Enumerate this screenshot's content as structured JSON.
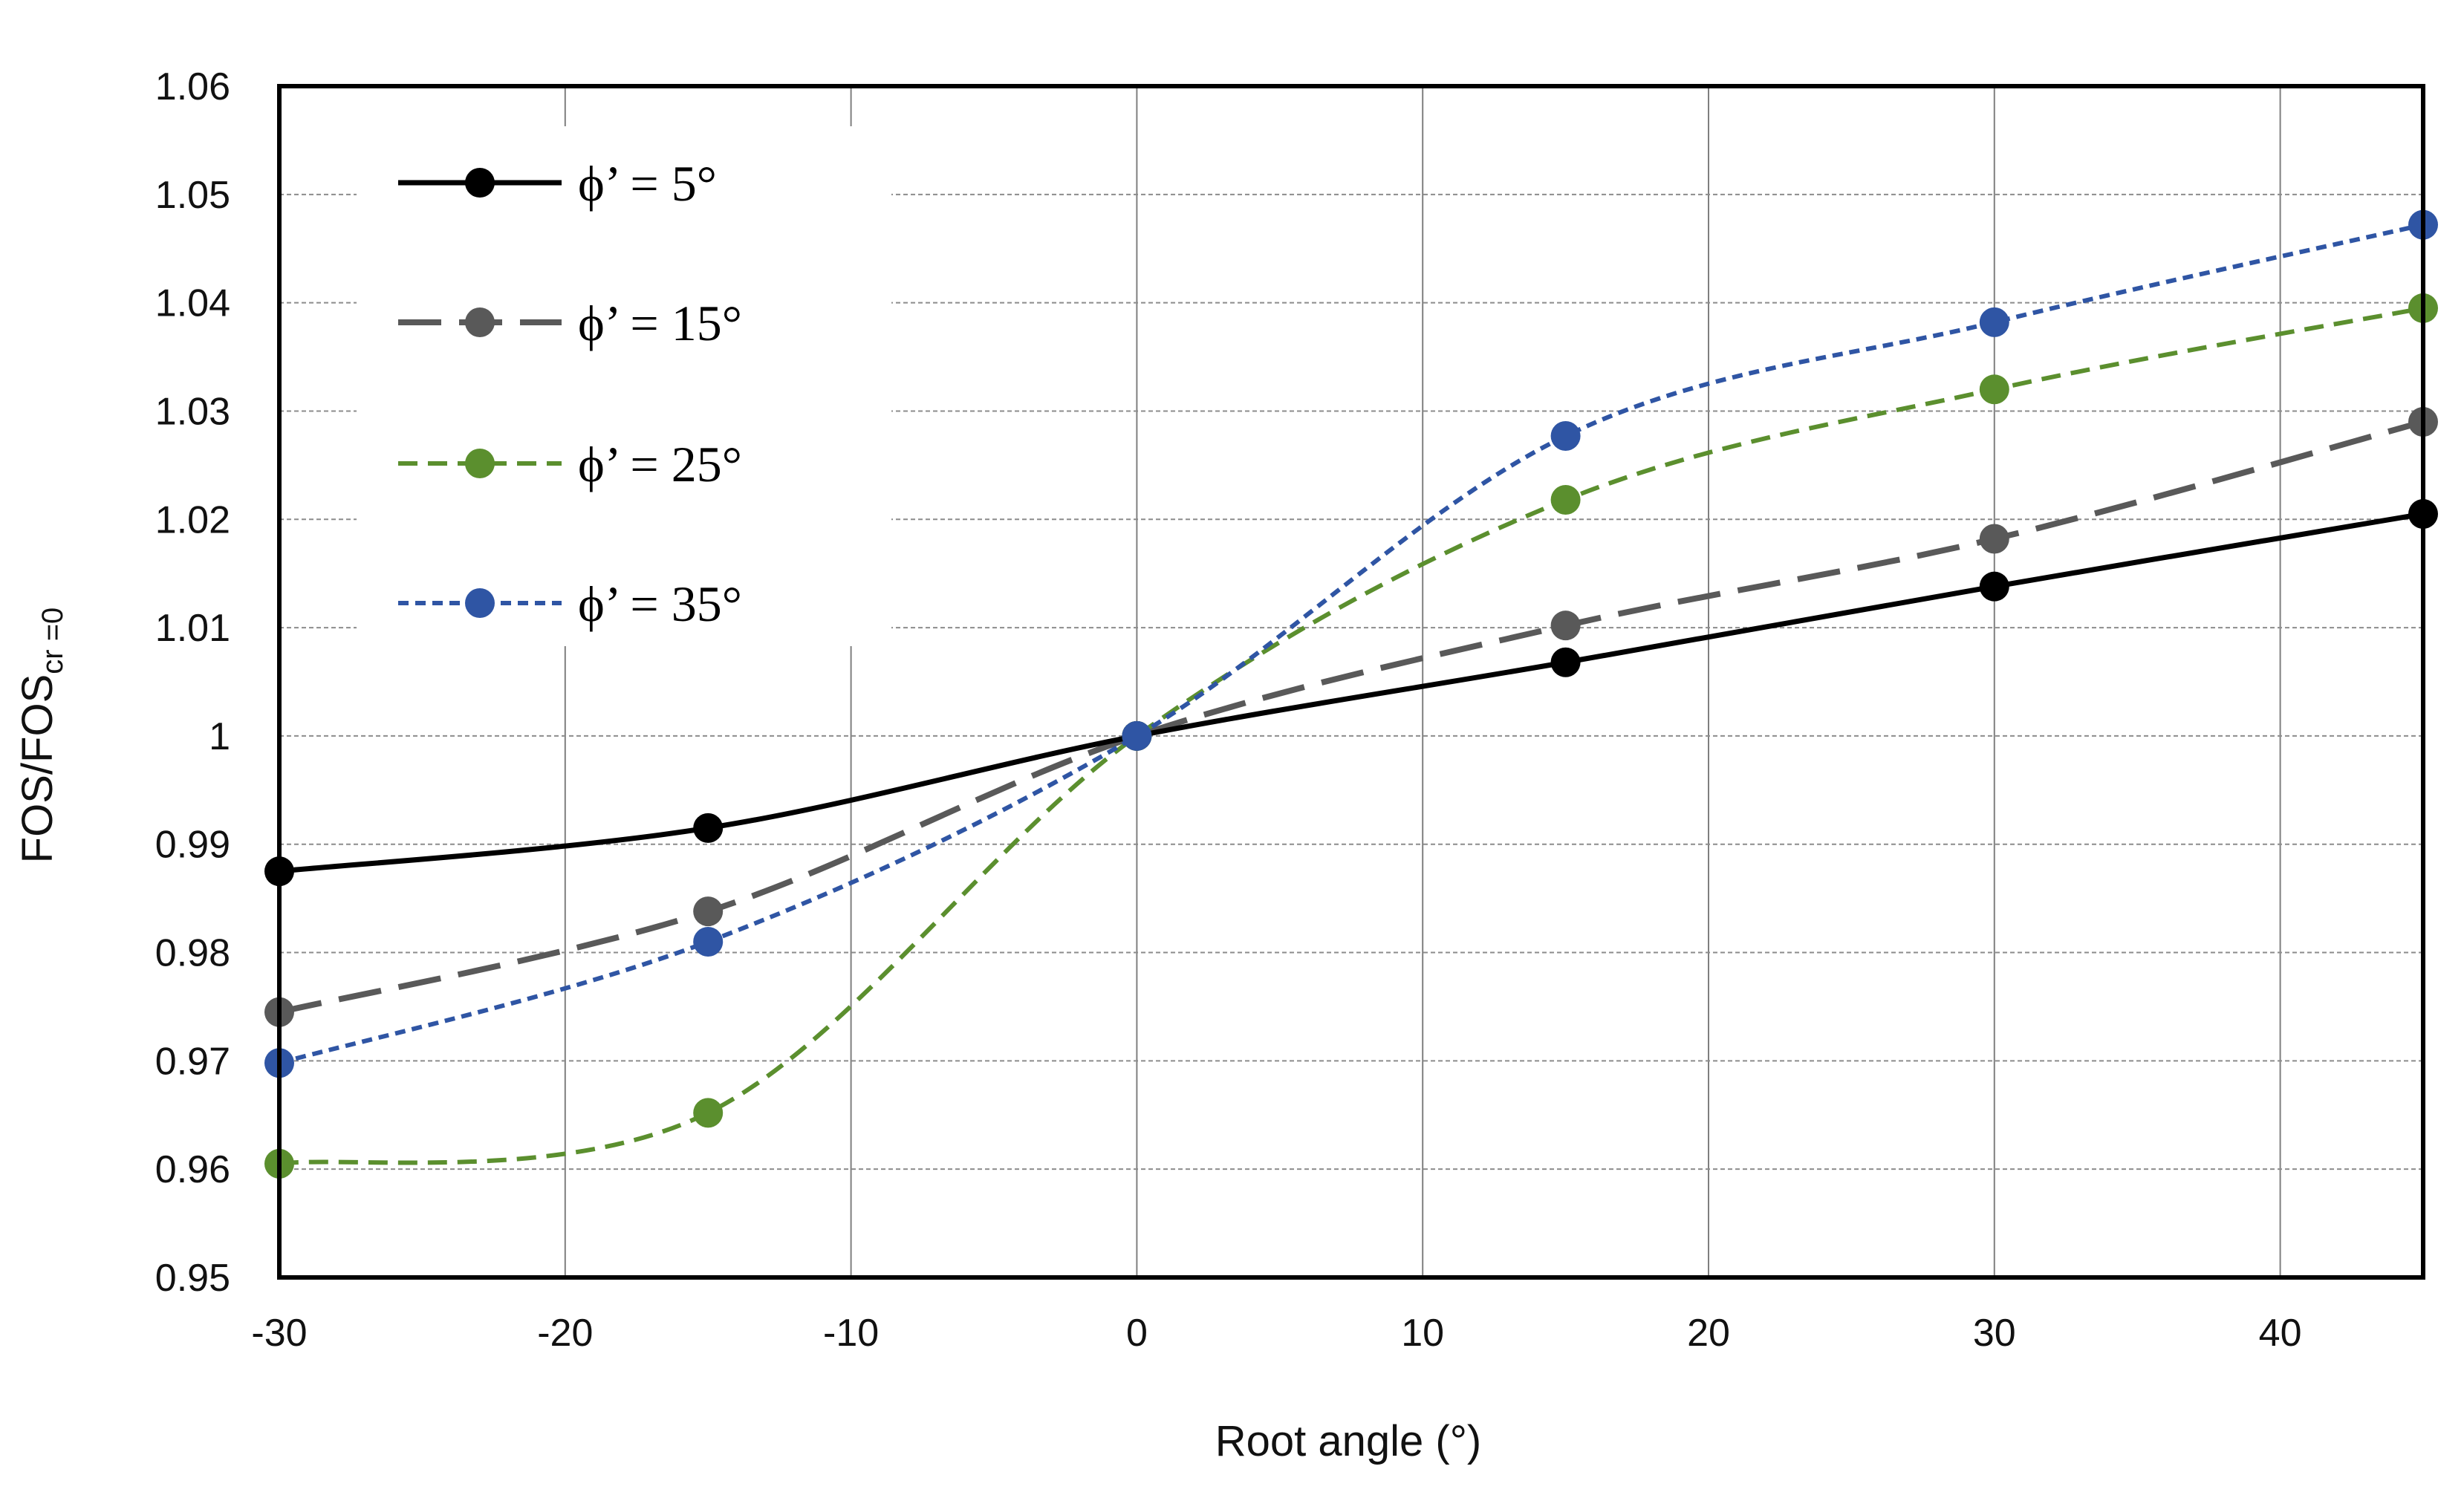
{
  "chart_data": {
    "type": "line",
    "title": "",
    "xlabel": "Root angle (°)",
    "ylabel_main": "FOS/FOS",
    "ylabel_sub": "cr =0",
    "xlim": [
      -30,
      45
    ],
    "ylim": [
      0.95,
      1.06
    ],
    "x_ticks": [
      -30,
      -20,
      -10,
      0,
      10,
      20,
      30,
      40
    ],
    "x_tick_labels": [
      "-30",
      "-20",
      "-10",
      "0",
      "10",
      "20",
      "30",
      "40"
    ],
    "y_ticks": [
      0.95,
      0.96,
      0.97,
      0.98,
      0.99,
      1.0,
      1.01,
      1.02,
      1.03,
      1.04,
      1.05,
      1.06
    ],
    "y_tick_labels": [
      "0.95",
      "0.96",
      "0.97",
      "0.98",
      "0.99",
      "1",
      "1.01",
      "1.02",
      "1.03",
      "1.04",
      "1.05",
      "1.06"
    ],
    "grid": true,
    "legend_position": "top-left",
    "x": [
      -30,
      -15,
      0,
      15,
      30,
      45
    ],
    "series": [
      {
        "name": "ϕ’ = 5°",
        "values": [
          0.9875,
          0.9915,
          1.0,
          1.0068,
          1.0138,
          1.0205
        ],
        "color": "#000000",
        "style": "solid"
      },
      {
        "name": "ϕ’ = 15°",
        "values": [
          0.9745,
          0.9838,
          1.0,
          1.0102,
          1.0182,
          1.029
        ],
        "color": "#595959",
        "style": "long-dash"
      },
      {
        "name": "ϕ’ = 25°",
        "values": [
          0.9605,
          0.9652,
          1.0,
          1.0218,
          1.032,
          1.0395
        ],
        "color": "#5b8f2e",
        "style": "dash"
      },
      {
        "name": "ϕ’ = 35°",
        "values": [
          0.9698,
          0.981,
          1.0,
          1.0277,
          1.0382,
          1.0472
        ],
        "color": "#2f55a4",
        "style": "short-dash"
      }
    ]
  }
}
